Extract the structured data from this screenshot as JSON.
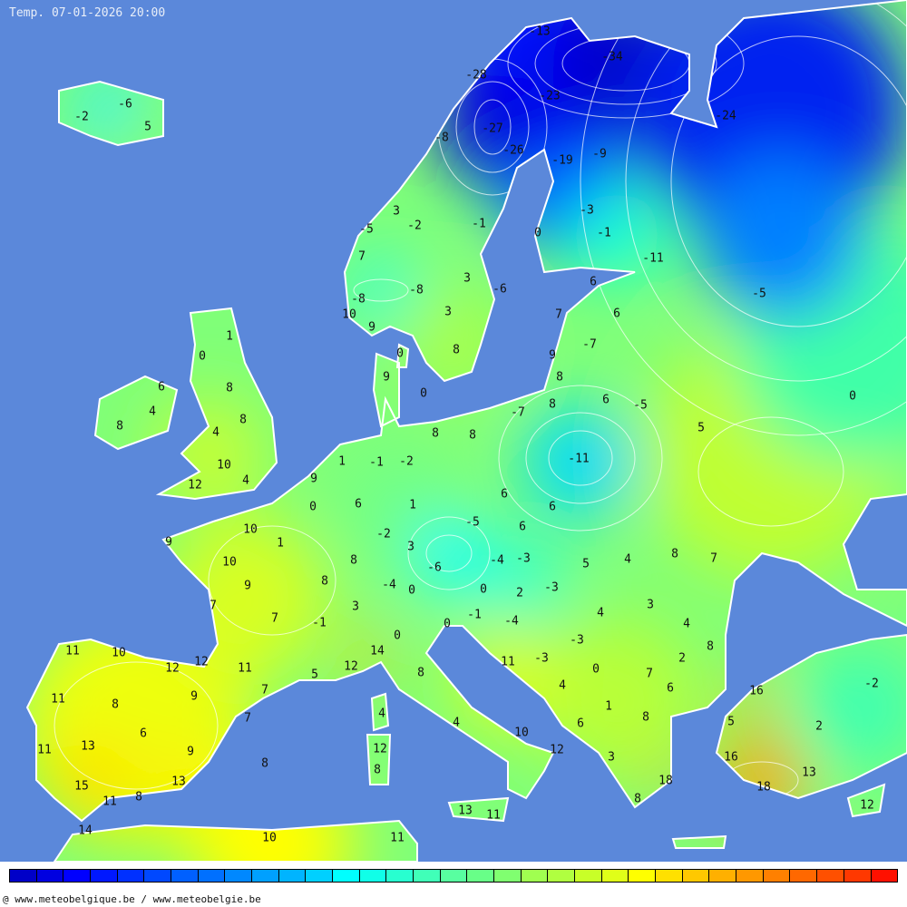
{
  "header": {
    "title": "Temp. 07-01-2026 20:00"
  },
  "footer": {
    "credit": "@ www.meteobelgique.be / www.meteobelgie.be"
  },
  "colors": {
    "ocean": "#5b88da",
    "coast": "#ffffff",
    "label": "#111111"
  },
  "colorbar": [
    "#0000c8",
    "#0000e0",
    "#0000ff",
    "#0018ff",
    "#0030ff",
    "#0048ff",
    "#0060ff",
    "#0070ff",
    "#0088ff",
    "#00a0ff",
    "#00b4ff",
    "#00d0ff",
    "#00ffff",
    "#10ffe8",
    "#28ffd0",
    "#40ffb8",
    "#58ffa0",
    "#68ff88",
    "#80ff70",
    "#a0ff50",
    "#b0ff40",
    "#c8ff28",
    "#e0ff18",
    "#ffff00",
    "#ffe000",
    "#ffc800",
    "#ffb000",
    "#ff9800",
    "#ff8000",
    "#ff6800",
    "#ff5000",
    "#ff3800",
    "#ff1000"
  ],
  "labels": [
    "-6",
    "-2",
    "5",
    "-13",
    "-34",
    "-28",
    "-23",
    "-24",
    "-27",
    "-26",
    "-19",
    "-9",
    "-8",
    "3",
    "-2",
    "-5",
    "7",
    "-8",
    "-8",
    "10",
    "9",
    "-1",
    "3",
    "-6",
    "3",
    "8",
    "0",
    "-3",
    "-1",
    "-11",
    "-5",
    "6",
    "6",
    "7",
    "-7",
    "9",
    "8",
    "8",
    "6",
    "-5",
    "0",
    "5",
    "0",
    "9",
    "0",
    "-7",
    "8",
    "8",
    "-11",
    "1",
    "0",
    "6",
    "4",
    "8",
    "8",
    "8",
    "4",
    "10",
    "4",
    "12",
    "9",
    "1",
    "-1",
    "-2",
    "0",
    "6",
    "1",
    "6",
    "6",
    "-5",
    "6",
    "10",
    "9",
    "1",
    "-2",
    "3",
    "10",
    "8",
    "8",
    "9",
    "-6",
    "-4",
    "-3",
    "5",
    "4",
    "8",
    "7",
    "-4",
    "0",
    "0",
    "2",
    "-3",
    "7",
    "7",
    "3",
    "-1",
    "0",
    "-1",
    "-4",
    "4",
    "3",
    "4",
    "0",
    "14",
    "-3",
    "8",
    "2",
    "11",
    "10",
    "12",
    "12",
    "11",
    "5",
    "12",
    "8",
    "11",
    "-3",
    "0",
    "7",
    "6",
    "4",
    "16",
    "-2",
    "11",
    "9",
    "7",
    "8",
    "7",
    "4",
    "1",
    "8",
    "5",
    "2",
    "4",
    "6",
    "10",
    "11",
    "13",
    "9",
    "12",
    "12",
    "6",
    "16",
    "8",
    "8",
    "3",
    "13",
    "15",
    "13",
    "18",
    "18",
    "11",
    "8",
    "8",
    "12",
    "13",
    "11",
    "14",
    "10",
    "11"
  ]
}
